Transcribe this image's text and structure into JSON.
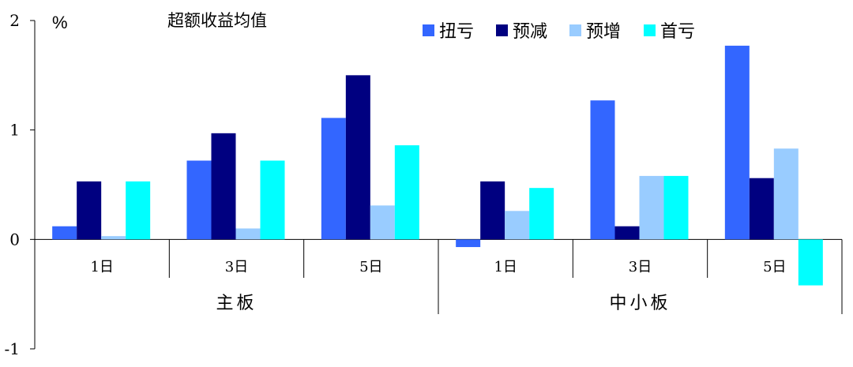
{
  "chart_data": {
    "type": "bar",
    "title": "超额收益均值",
    "ylabel": "%",
    "ylim": [
      -1,
      2
    ],
    "yticks": [
      "2",
      "1",
      "0",
      "-1"
    ],
    "grid": false,
    "legend_position": "top-right",
    "categories": [
      "1日",
      "3日",
      "5日",
      "1日",
      "3日",
      "5日"
    ],
    "groups": [
      {
        "label": "主板",
        "categories": [
          "1日",
          "3日",
          "5日"
        ]
      },
      {
        "label": "中小板",
        "categories": [
          "1日",
          "3日",
          "5日"
        ]
      }
    ],
    "series": [
      {
        "name": "扭亏",
        "color": "#3366ff",
        "values": [
          0.12,
          0.72,
          1.11,
          -0.07,
          1.27,
          1.77
        ]
      },
      {
        "name": "预减",
        "color": "#000080",
        "values": [
          0.53,
          0.97,
          1.5,
          0.53,
          0.12,
          0.56
        ]
      },
      {
        "name": "预增",
        "color": "#99ccff",
        "values": [
          0.03,
          0.1,
          0.31,
          0.26,
          0.58,
          0.83
        ]
      },
      {
        "name": "首亏",
        "color": "#00ffff",
        "values": [
          0.53,
          0.72,
          0.86,
          0.47,
          0.58,
          -0.42
        ]
      }
    ]
  }
}
